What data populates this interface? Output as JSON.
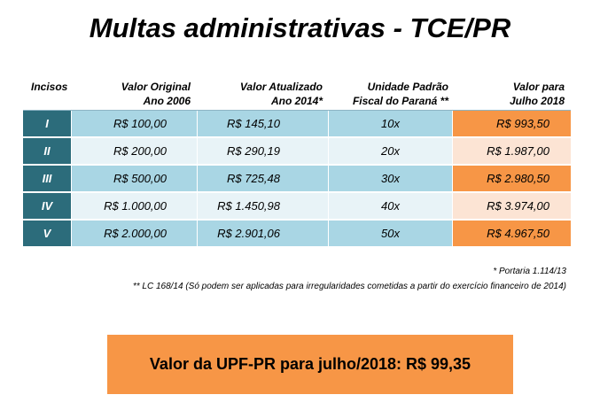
{
  "title": "Multas administrativas - TCE/PR",
  "headers": {
    "incisos": "Incisos",
    "original_1": "Valor Original",
    "original_2": "Ano 2006",
    "atualizado_1": "Valor Atualizado",
    "atualizado_2": "Ano 2014*",
    "unidade_1": "Unidade Padrão",
    "unidade_2": "Fiscal do Paraná **",
    "julho_1": "Valor para",
    "julho_2": "Julho 2018"
  },
  "rows": [
    {
      "inciso": "I",
      "original": "R$ 100,00",
      "atualizado": "R$ 145,10",
      "unidade": "10x",
      "julho": "R$ 993,50"
    },
    {
      "inciso": "II",
      "original": "R$ 200,00",
      "atualizado": "R$ 290,19",
      "unidade": "20x",
      "julho": "R$ 1.987,00"
    },
    {
      "inciso": "III",
      "original": "R$ 500,00",
      "atualizado": "R$ 725,48",
      "unidade": "30x",
      "julho": "R$ 2.980,50"
    },
    {
      "inciso": "IV",
      "original": "R$ 1.000,00",
      "atualizado": "R$ 1.450,98",
      "unidade": "40x",
      "julho": "R$ 3.974,00"
    },
    {
      "inciso": "V",
      "original": "R$ 2.000,00",
      "atualizado": "R$ 2.901,06",
      "unidade": "50x",
      "julho": "R$ 4.967,50"
    }
  ],
  "notes": {
    "portaria": "* Portaria 1.114/13",
    "lc": "** LC 168/14 (Só podem ser aplicadas para irregularidades cometidas a partir do exercício financeiro de 2014)"
  },
  "banner": "Valor da UPF-PR para julho/2018: R$ 99,35",
  "colors": {
    "header_dark": "#2c6c7b",
    "light_blue": "#a9d6e4",
    "pale_blue": "#e8f3f7",
    "orange": "#f79646",
    "pale_orange": "#fce4d4"
  }
}
